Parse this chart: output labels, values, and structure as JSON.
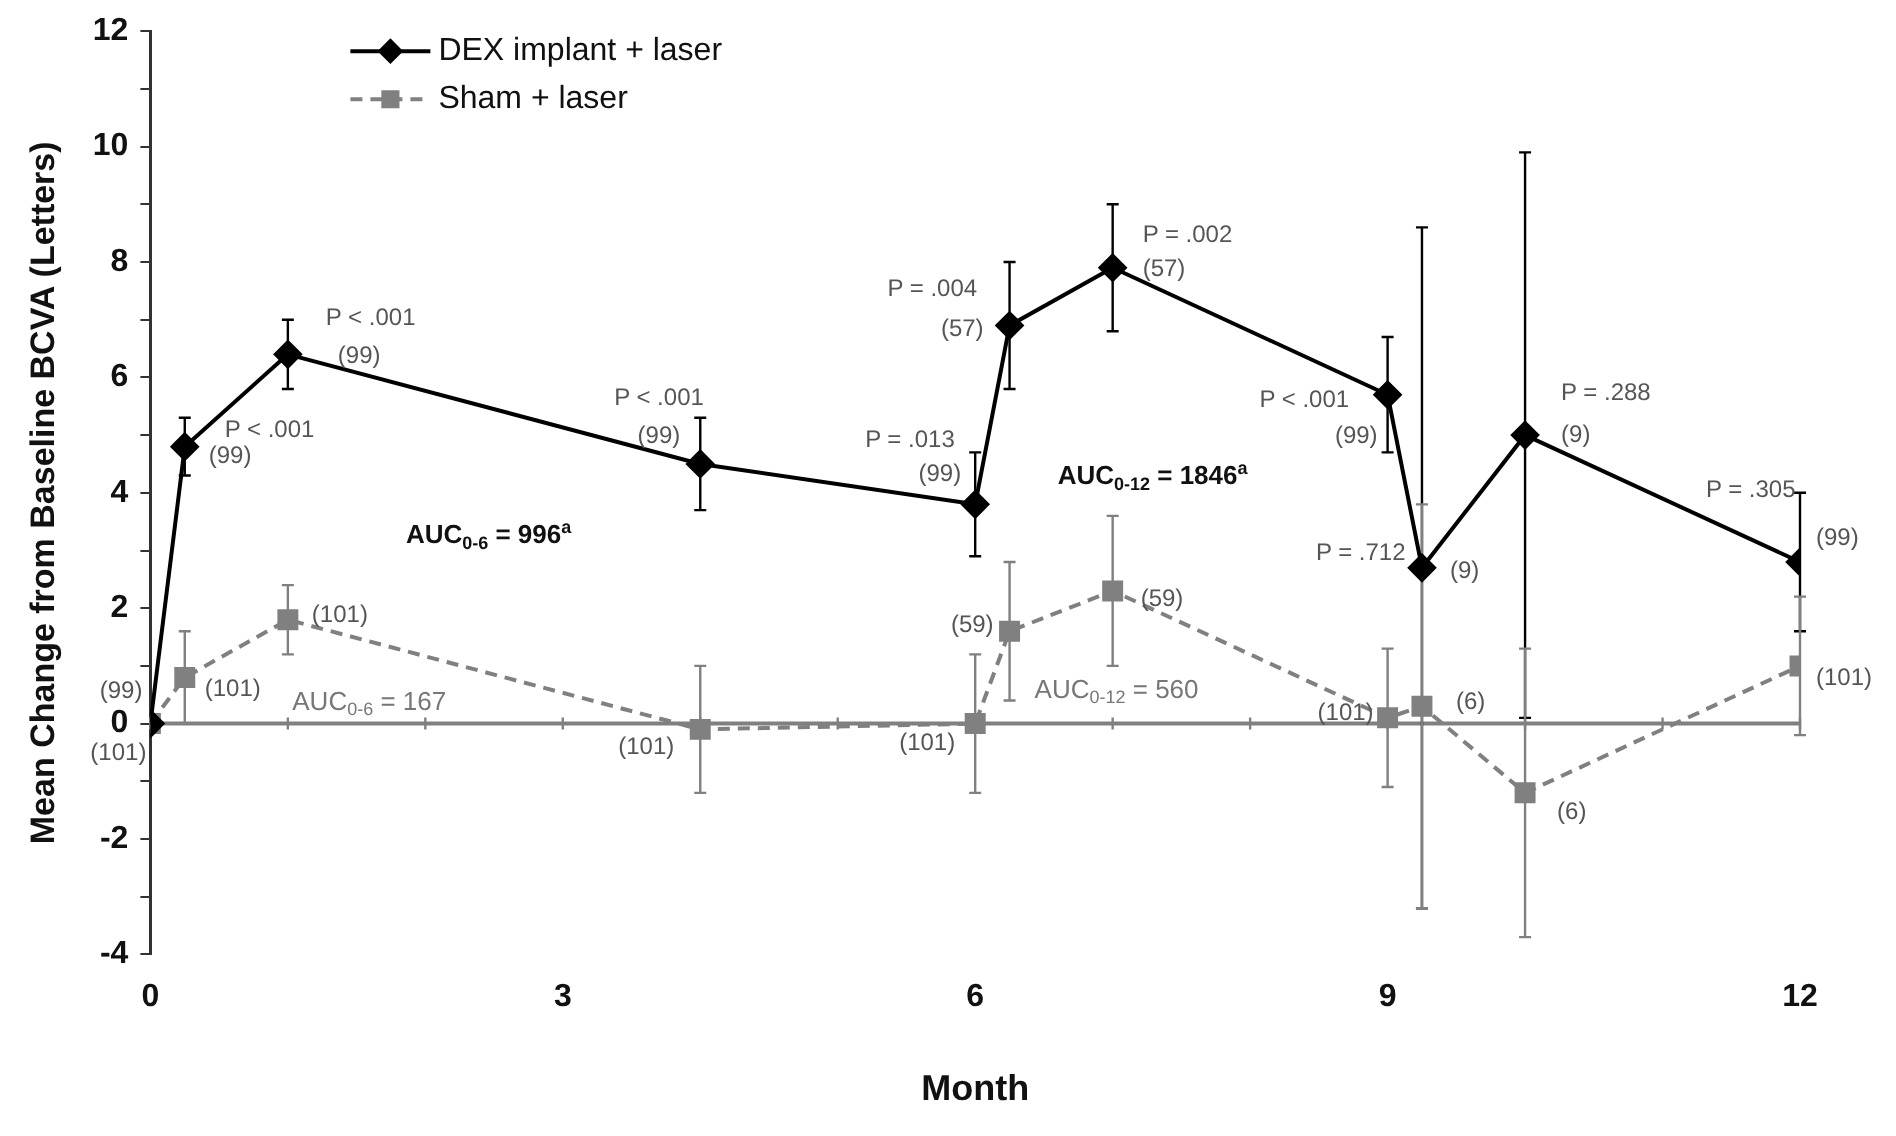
{
  "chart_data": {
    "type": "line",
    "xlabel": "Month",
    "ylabel": "Mean Change from Baseline BCVA (Letters)",
    "x": [
      0,
      0.25,
      1,
      4,
      6,
      6.25,
      7,
      9,
      9.25,
      10,
      12
    ],
    "series": [
      {
        "name": "DEX implant + laser",
        "color": "#000000",
        "marker": "diamond",
        "line_style": "solid",
        "values": [
          0,
          4.8,
          6.4,
          4.5,
          3.8,
          6.9,
          7.9,
          5.7,
          2.7,
          5.0,
          2.8
        ],
        "errors": [
          null,
          0.5,
          0.6,
          0.8,
          0.9,
          1.1,
          1.1,
          1.0,
          5.9,
          4.9,
          1.2
        ]
      },
      {
        "name": "Sham + laser",
        "color": "#808080",
        "marker": "square",
        "line_style": "dashed",
        "values": [
          0,
          0.8,
          1.8,
          -0.1,
          0,
          1.6,
          2.3,
          0.1,
          0.3,
          -1.2,
          1.0
        ],
        "errors": [
          null,
          0.8,
          0.6,
          1.1,
          1.2,
          1.2,
          1.3,
          1.2,
          3.5,
          2.5,
          1.2
        ]
      }
    ],
    "xlim": [
      0,
      12
    ],
    "xticks": [
      0,
      {
        "value": 1,
        "label": null
      },
      {
        "value": 2,
        "label": null
      },
      3,
      {
        "value": 4,
        "label": null
      },
      {
        "value": 5,
        "label": null
      },
      6,
      {
        "value": 7,
        "label": null
      },
      {
        "value": 8,
        "label": null
      },
      9,
      {
        "value": 10,
        "label": null
      },
      {
        "value": 11,
        "label": null
      },
      12
    ],
    "ylim": [
      -4,
      12
    ],
    "yticks": [
      -4,
      {
        "value": -3,
        "label": null
      },
      -2,
      {
        "value": -1,
        "label": null
      },
      0,
      {
        "value": 1,
        "label": null
      },
      2,
      {
        "value": 3,
        "label": null
      },
      4,
      {
        "value": 5,
        "label": null
      },
      6,
      {
        "value": 7,
        "label": null
      },
      8,
      {
        "value": 9,
        "label": null
      },
      10,
      {
        "value": 11,
        "label": null
      },
      12
    ],
    "ref_lines": [
      {
        "axis": "y",
        "value": 0,
        "label": null,
        "color": "#808080"
      }
    ],
    "legend": "top left",
    "annotations": [
      {
        "text": "(99)",
        "x": 0,
        "y": 0
      },
      {
        "text": "P < .001",
        "x": 0.25,
        "y": 4.8
      },
      {
        "text": "(99)",
        "x": 0.25,
        "y": 4.8
      },
      {
        "text": "P < .001",
        "x": 1,
        "y": 6.4
      },
      {
        "text": "(99)",
        "x": 1,
        "y": 6.4
      },
      {
        "text": "P < .001",
        "x": 4,
        "y": 4.5
      },
      {
        "text": "(99)",
        "x": 4,
        "y": 4.5
      },
      {
        "text": "P = .013",
        "x": 6,
        "y": 3.8
      },
      {
        "text": "(99)",
        "x": 6,
        "y": 3.8
      },
      {
        "text": "P = .004",
        "x": 6.25,
        "y": 6.9
      },
      {
        "text": "(57)",
        "x": 6.25,
        "y": 6.9
      },
      {
        "text": "P = .002",
        "x": 7,
        "y": 7.9
      },
      {
        "text": "(57)",
        "x": 7,
        "y": 7.9
      },
      {
        "text": "P < .001",
        "x": 9,
        "y": 5.7
      },
      {
        "text": "(99)",
        "x": 9,
        "y": 5.7
      },
      {
        "text": "P = .712",
        "x": 9.25,
        "y": 2.7
      },
      {
        "text": "(9)",
        "x": 9.25,
        "y": 2.7
      },
      {
        "text": "P = .288",
        "x": 10,
        "y": 5.0
      },
      {
        "text": "(9)",
        "x": 10,
        "y": 5.0
      },
      {
        "text": "P = .305",
        "x": 12,
        "y": 2.8
      },
      {
        "text": "(99)",
        "x": 12,
        "y": 2.8
      },
      {
        "text": "(101)",
        "x": 0,
        "y": 0
      },
      {
        "text": "(101)",
        "x": 0.25,
        "y": 0.8
      },
      {
        "text": "(101)",
        "x": 1,
        "y": 1.8
      },
      {
        "text": "(101)",
        "x": 4,
        "y": -0.1
      },
      {
        "text": "(101)",
        "x": 6,
        "y": 0
      },
      {
        "text": "(59)",
        "x": 6.25,
        "y": 1.6
      },
      {
        "text": "(59)",
        "x": 7,
        "y": 2.3
      },
      {
        "text": "(101)",
        "x": 9,
        "y": 0.1
      },
      {
        "text": "(6)",
        "x": 9.25,
        "y": 0.3
      },
      {
        "text": "(6)",
        "x": 10,
        "y": -1.2
      },
      {
        "text": "(101)",
        "x": 12,
        "y": 1.0
      },
      "AUC$_{0-6}$ = 996$^{a}$",
      "AUC$_{0-6}$ = 167",
      "AUC$_{0-12}$ = 1846$^{a}$",
      "AUC$_{0-12}$ = 560"
    ]
  }
}
